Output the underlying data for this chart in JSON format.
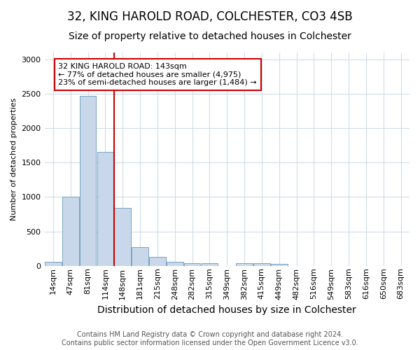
{
  "title1": "32, KING HAROLD ROAD, COLCHESTER, CO3 4SB",
  "title2": "Size of property relative to detached houses in Colchester",
  "xlabel": "Distribution of detached houses by size in Colchester",
  "ylabel": "Number of detached properties",
  "categories": [
    "14sqm",
    "47sqm",
    "81sqm",
    "114sqm",
    "148sqm",
    "181sqm",
    "215sqm",
    "248sqm",
    "282sqm",
    "315sqm",
    "349sqm",
    "382sqm",
    "415sqm",
    "449sqm",
    "482sqm",
    "516sqm",
    "549sqm",
    "583sqm",
    "616sqm",
    "650sqm",
    "683sqm"
  ],
  "values": [
    60,
    1000,
    2470,
    1660,
    840,
    270,
    125,
    55,
    40,
    40,
    0,
    35,
    35,
    25,
    0,
    0,
    0,
    0,
    0,
    0,
    0
  ],
  "bar_color": "#c8d8ea",
  "bar_edge_color": "#6699bb",
  "vline_color": "#cc0000",
  "vline_x": 4,
  "annotation_line1": "32 KING HAROLD ROAD: 143sqm",
  "annotation_line2": "← 77% of detached houses are smaller (4,975)",
  "annotation_line3": "23% of semi-detached houses are larger (1,484) →",
  "annotation_box_facecolor": "#ffffff",
  "annotation_box_edgecolor": "#cc0000",
  "ylim": [
    0,
    3100
  ],
  "yticks": [
    0,
    500,
    1000,
    1500,
    2000,
    2500,
    3000
  ],
  "footer1": "Contains HM Land Registry data © Crown copyright and database right 2024.",
  "footer2": "Contains public sector information licensed under the Open Government Licence v3.0.",
  "bg_color": "#ffffff",
  "grid_color": "#d0dce8",
  "title1_fontsize": 12,
  "title2_fontsize": 10,
  "xlabel_fontsize": 10,
  "ylabel_fontsize": 8,
  "tick_fontsize": 8,
  "footer_fontsize": 7,
  "annot_fontsize": 8
}
